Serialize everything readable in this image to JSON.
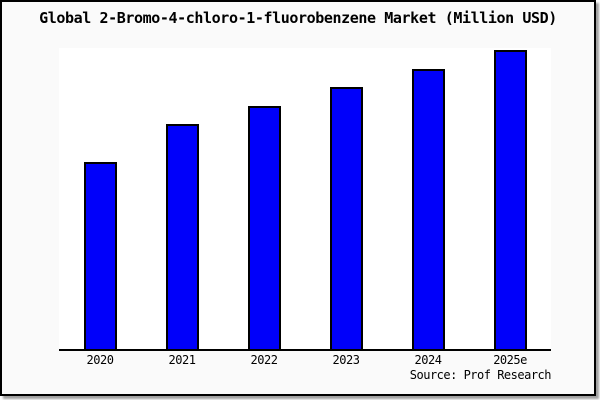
{
  "chart_data": {
    "type": "bar",
    "title": "Global 2-Bromo-4-chloro-1-fluorobenzene Market (Million USD)",
    "categories": [
      "2020",
      "2021",
      "2022",
      "2023",
      "2024",
      "2025e"
    ],
    "values": [
      62.5,
      75,
      81,
      87.5,
      93.5,
      100
    ],
    "values_note": "No y-axis ticks or data labels are shown in the chart; values are relative bar heights estimated with 2025e = 100",
    "xlabel": "",
    "ylabel": "",
    "ylim": [
      0,
      100.5
    ],
    "gridlines": false,
    "y_axis_visible": false,
    "legend_visible": false,
    "source": "Source: Prof Research",
    "bar_color": "#0000fa",
    "bar_border_color": "#000000"
  },
  "colors": {
    "background": "#fafafa",
    "plot_background": "#ffffff",
    "axis": "#000000",
    "frame_border": "#000000",
    "shadow": "#a0a0a0",
    "text": "#000000"
  }
}
